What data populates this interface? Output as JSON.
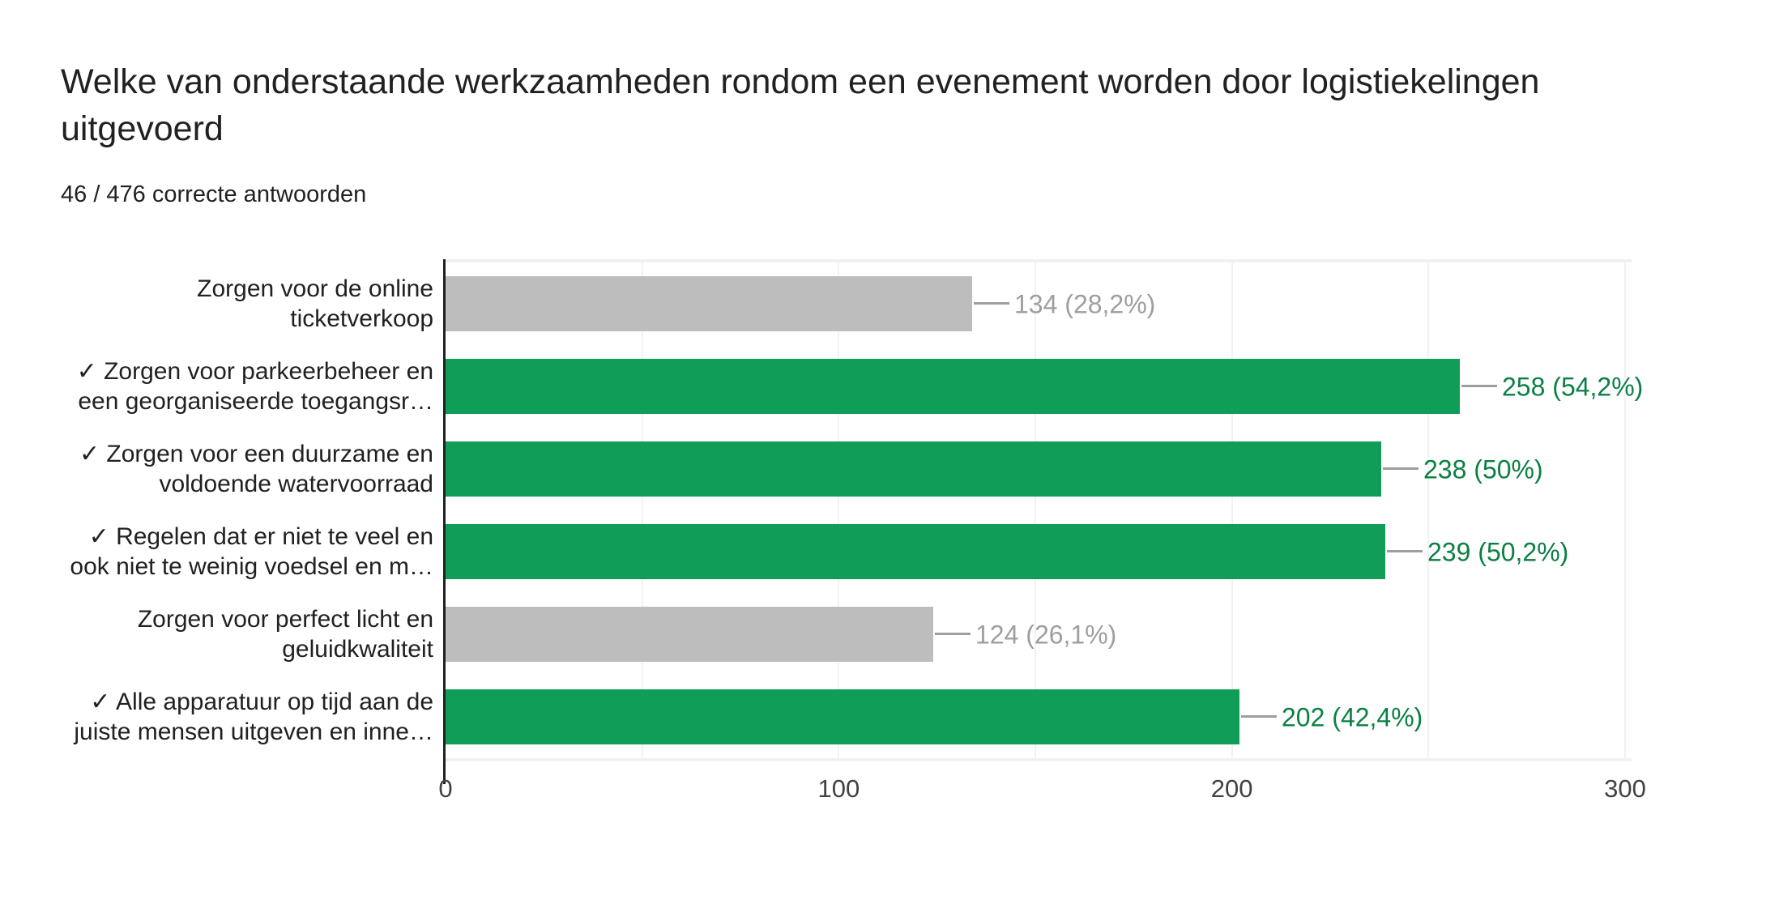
{
  "header": {
    "title_lines": [
      "Welke van onderstaande werkzaamheden rondom een evenement worden door logistiekelingen",
      "uitgevoerd"
    ],
    "subtitle": "46 / 476 correcte antwoorden"
  },
  "colors": {
    "bar_correct": "#0f9d58",
    "bar_incorrect": "#bdbdbd",
    "value_label_correct": "#0b8043",
    "value_label_incorrect": "#9e9e9e",
    "connector": "#9e9e9e",
    "axis_line": "#212121",
    "tick_label": "#424242",
    "gridline": "#f2f2f2",
    "plot_frame": "#f1f1f1",
    "category_label": "#212121",
    "title_text": "#212121"
  },
  "chart_data": {
    "type": "bar",
    "orientation": "horizontal",
    "title": "Welke van onderstaande werkzaamheden rondom een evenement worden door logistiekelingen uitgevoerd",
    "subtitle": "46 / 476 correcte antwoorden",
    "categories": [
      "Zorgen voor de online ticketverkoop",
      "✓ Zorgen voor parkeerbeheer en een georganiseerde toegangsr…",
      "✓ Zorgen voor een duurzame en voldoende watervoorraad",
      "✓ Regelen dat er niet te veel en ook niet te weinig voedsel en m…",
      "Zorgen voor perfect licht en geluidkwaliteit",
      "✓ Alle apparatuur op tijd aan de juiste mensen uitgeven en inne…"
    ],
    "category_label_lines": [
      [
        "Zorgen voor de online",
        "ticketverkoop"
      ],
      [
        "✓ Zorgen voor parkeerbeheer en",
        "een georganiseerde toegangsr…"
      ],
      [
        "✓ Zorgen voor een duurzame en",
        "voldoende watervoorraad"
      ],
      [
        "✓ Regelen dat er niet te veel en",
        "ook niet te weinig voedsel en m…"
      ],
      [
        "Zorgen voor perfect licht en",
        "geluidkwaliteit"
      ],
      [
        "✓ Alle apparatuur op tijd aan de",
        "juiste mensen uitgeven en inne…"
      ]
    ],
    "values": [
      134,
      258,
      238,
      239,
      124,
      202
    ],
    "value_labels": [
      "134 (28,2%)",
      "258 (54,2%)",
      "238 (50%)",
      "239 (50,2%)",
      "124 (26,1%)",
      "202 (42,4%)"
    ],
    "correct": [
      false,
      true,
      true,
      true,
      false,
      true
    ],
    "xlim": [
      0,
      300
    ],
    "x_ticks": [
      "0",
      "100",
      "200",
      "300"
    ],
    "minor_grid_step": 50,
    "grid": true,
    "legend": "none"
  }
}
